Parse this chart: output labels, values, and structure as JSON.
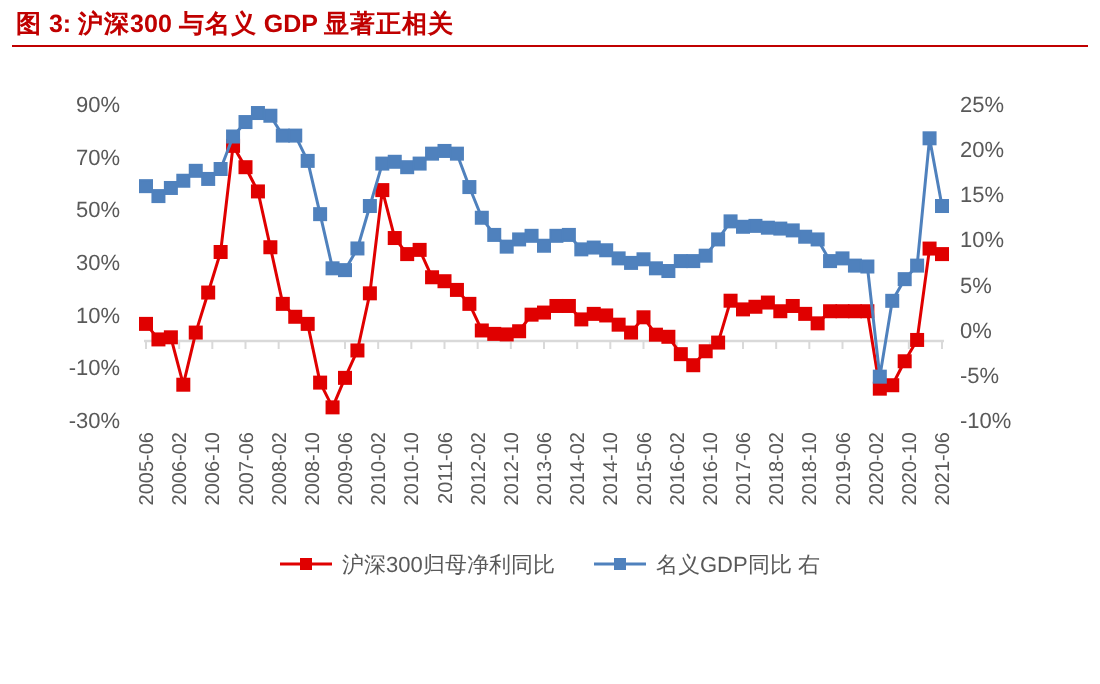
{
  "chart_data": {
    "type": "line",
    "title": "图 3: 沪深300 与名义 GDP 显著正相关",
    "x": [
      "2005-06",
      "2005-09",
      "2005-12",
      "2006-03",
      "2006-06",
      "2006-09",
      "2006-12",
      "2007-03",
      "2007-06",
      "2007-09",
      "2007-12",
      "2008-03",
      "2008-06",
      "2008-09",
      "2008-12",
      "2009-03",
      "2009-06",
      "2009-09",
      "2009-12",
      "2010-03",
      "2010-06",
      "2010-09",
      "2010-12",
      "2011-03",
      "2011-06",
      "2011-09",
      "2011-12",
      "2012-03",
      "2012-06",
      "2012-09",
      "2012-12",
      "2013-03",
      "2013-06",
      "2013-09",
      "2013-12",
      "2014-03",
      "2014-06",
      "2014-09",
      "2014-12",
      "2015-03",
      "2015-06",
      "2015-09",
      "2015-12",
      "2016-03",
      "2016-06",
      "2016-09",
      "2016-12",
      "2017-03",
      "2017-06",
      "2017-09",
      "2017-12",
      "2018-03",
      "2018-06",
      "2018-09",
      "2018-12",
      "2019-03",
      "2019-06",
      "2019-09",
      "2019-12",
      "2020-03",
      "2020-06",
      "2020-09",
      "2020-12",
      "2021-03",
      "2021-06"
    ],
    "series": [
      {
        "name": "沪深300归母净利同比",
        "color": "#e00000",
        "axis": "y",
        "values": [
          6.5,
          0.6,
          1.4,
          -16.6,
          3.2,
          18.4,
          33.8,
          74.1,
          66,
          56.8,
          35.6,
          14.1,
          9.2,
          6.5,
          -15.8,
          -25.2,
          -14,
          -3.6,
          18.1,
          57.3,
          39.1,
          33,
          34.6,
          24.2,
          22.7,
          19.4,
          14.1,
          4,
          2.7,
          2.5,
          3.7,
          10,
          10.8,
          13.3,
          13.3,
          8.2,
          10.3,
          9.7,
          6.2,
          3.2,
          9,
          2.4,
          1.6,
          -5,
          -9.2,
          -3.9,
          -0.6,
          15.3,
          12,
          13,
          14.6,
          11.3,
          13.3,
          10.3,
          6.7,
          11.3,
          11.3,
          11.3,
          11.3,
          -18.1,
          -16.8,
          -7.7,
          0.4,
          35.1,
          33
        ]
      },
      {
        "name": "名义GDP同比 右",
        "color": "#4f81bd",
        "axis": "y2",
        "values": [
          15.9,
          14.8,
          15.7,
          16.5,
          17.6,
          16.7,
          17.8,
          21.4,
          23,
          24,
          23.7,
          21.5,
          21.5,
          18.7,
          12.8,
          6.8,
          6.6,
          9,
          13.7,
          18.4,
          18.6,
          18,
          18.4,
          19.5,
          19.8,
          19.5,
          15.8,
          12.4,
          10.5,
          9.2,
          10,
          10.4,
          9.3,
          10.4,
          10.5,
          8.9,
          9.1,
          8.8,
          7.9,
          7.4,
          7.8,
          6.8,
          6.5,
          7.6,
          7.6,
          8.2,
          10,
          12,
          11.4,
          11.5,
          11.3,
          11.2,
          11,
          10.3,
          10,
          7.6,
          7.9,
          7.1,
          7,
          -5.2,
          3.2,
          5.6,
          7.1,
          21.2,
          13.7
        ]
      }
    ],
    "xlim": [
      "2005-06",
      "2021-06"
    ],
    "xticks": [
      "2005-06",
      "2006-02",
      "2006-10",
      "2007-06",
      "2008-02",
      "2008-10",
      "2009-06",
      "2010-02",
      "2010-10",
      "2011-06",
      "2012-02",
      "2012-10",
      "2013-06",
      "2014-02",
      "2014-10",
      "2015-06",
      "2016-02",
      "2016-10",
      "2017-06",
      "2018-02",
      "2018-10",
      "2019-06",
      "2020-02",
      "2020-10",
      "2021-06"
    ],
    "ylim": [
      -30,
      90
    ],
    "yticks": [
      {
        "value": -30,
        "label": "-30%"
      },
      {
        "value": -10,
        "label": "-10%"
      },
      {
        "value": 10,
        "label": "10%"
      },
      {
        "value": 30,
        "label": "30%"
      },
      {
        "value": 50,
        "label": "50%"
      },
      {
        "value": 70,
        "label": "70%"
      },
      {
        "value": 90,
        "label": "90%"
      }
    ],
    "y2lim": [
      -10,
      25
    ],
    "y2ticks": [
      {
        "value": -10,
        "label": "-10%"
      },
      {
        "value": -5,
        "label": "-5%"
      },
      {
        "value": 0,
        "label": "0%"
      },
      {
        "value": 5,
        "label": "5%"
      },
      {
        "value": 10,
        "label": "10%"
      },
      {
        "value": 15,
        "label": "15%"
      },
      {
        "value": 20,
        "label": "20%"
      },
      {
        "value": 25,
        "label": "25%"
      }
    ],
    "marker": "square",
    "legend": "bottom",
    "grid": false
  }
}
